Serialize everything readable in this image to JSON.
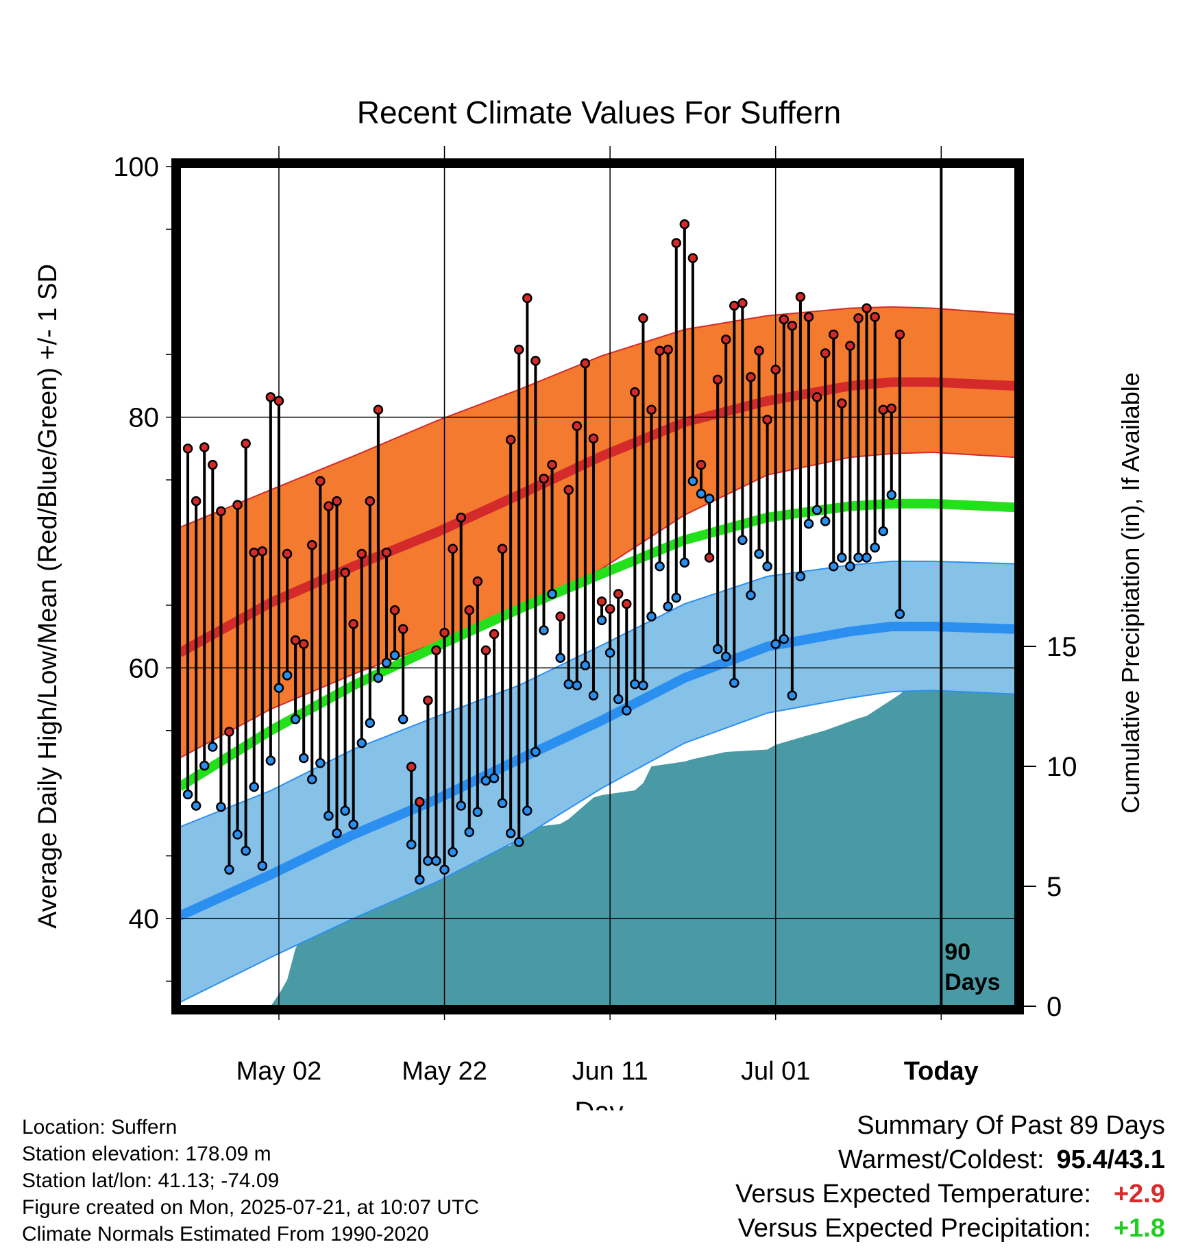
{
  "chart_data": {
    "type": "line",
    "title": "Recent Climate Values For Suffern",
    "xlabel": "Day",
    "ylabel": "Average Daily High/Low/Mean (Red/Blue/Green) +/- 1 SD",
    "y2label": "Cumulative Precipitation (in), If Available",
    "ylim": [
      33,
      100
    ],
    "yticks": [
      40,
      60,
      80,
      100
    ],
    "y2lim": [
      0,
      35
    ],
    "y2ticks": [
      0,
      5,
      10,
      15
    ],
    "xlim": [
      -1,
      100
    ],
    "x_tick_labels": [
      {
        "day": 11,
        "label": "May 02"
      },
      {
        "day": 31,
        "label": "May 22"
      },
      {
        "day": 51,
        "label": "Jun 11"
      },
      {
        "day": 71,
        "label": "Jul 01"
      },
      {
        "day": 91,
        "label": "Today"
      }
    ],
    "today_marker": {
      "day": 91,
      "label_line1": "90",
      "label_line2": "Days"
    },
    "grid": true,
    "colors": {
      "high_band": "#f47a30",
      "high_line": "#d42a2a",
      "mean_line": "#22e01a",
      "low_band": "#86c1e8",
      "low_line": "#2b8ff0",
      "precip": "#4a9aa5",
      "high_dot": "#d42a2a",
      "low_dot": "#2b8ff0"
    },
    "normals": {
      "x": [
        -1,
        10,
        20,
        30,
        40,
        50,
        60,
        70,
        80,
        85,
        90,
        100
      ],
      "high_mean": [
        61.2,
        65.2,
        68.1,
        70.8,
        73.8,
        76.9,
        79.6,
        81.3,
        82.5,
        82.8,
        82.8,
        82.5
      ],
      "high_upper": [
        71.2,
        74.2,
        76.9,
        79.7,
        82.2,
        84.9,
        87.0,
        88.1,
        88.7,
        88.8,
        88.7,
        88.2
      ],
      "high_lower": [
        52.8,
        56.7,
        59.5,
        62.0,
        64.6,
        67.9,
        72.2,
        75.4,
        76.8,
        77.1,
        77.2,
        76.8
      ],
      "normal_mean": [
        50.5,
        55.0,
        58.6,
        61.7,
        64.7,
        67.5,
        70.2,
        72.0,
        72.9,
        73.1,
        73.1,
        72.8
      ],
      "low_mean": [
        40.2,
        43.5,
        46.7,
        49.5,
        52.7,
        55.8,
        59.2,
        61.7,
        62.9,
        63.3,
        63.3,
        63.1
      ],
      "low_upper": [
        47.3,
        50.2,
        53.5,
        56.1,
        58.6,
        61.8,
        65.1,
        67.3,
        68.2,
        68.5,
        68.5,
        68.3
      ],
      "low_lower": [
        33.3,
        36.9,
        40.0,
        42.9,
        46.3,
        50.4,
        54.0,
        56.4,
        57.6,
        58.1,
        58.2,
        57.9
      ]
    },
    "series": [
      {
        "name": "High",
        "values": [
          77.5,
          73.3,
          77.6,
          76.2,
          72.5,
          54.9,
          73.0,
          77.9,
          69.2,
          69.3,
          81.6,
          81.3,
          69.1,
          62.2,
          61.9,
          69.8,
          74.9,
          72.9,
          73.3,
          67.6,
          63.5,
          69.1,
          73.3,
          80.6,
          69.2,
          64.6,
          63.1,
          52.1,
          49.3,
          57.4,
          61.4,
          62.8,
          69.5,
          72.0,
          64.6,
          66.9,
          61.4,
          62.7,
          69.5,
          78.2,
          85.4,
          89.5,
          84.5,
          75.1,
          76.2,
          64.1,
          74.2,
          79.3,
          84.3,
          78.3,
          65.3,
          64.7,
          65.9,
          65.1,
          82.0,
          87.9,
          80.6,
          85.3,
          85.4,
          93.9,
          95.4,
          92.7,
          76.2,
          68.8,
          83.0,
          86.2,
          88.9,
          89.1,
          83.2,
          85.3,
          79.8,
          83.8,
          87.8,
          87.3,
          89.6,
          88.0,
          81.6,
          85.1,
          86.6,
          81.1,
          85.7,
          87.9,
          88.7,
          88.0,
          80.6,
          80.7,
          86.6
        ]
      },
      {
        "name": "Low",
        "values": [
          49.9,
          49.0,
          52.2,
          53.7,
          48.9,
          43.9,
          46.7,
          45.4,
          50.5,
          44.2,
          52.6,
          58.4,
          59.4,
          55.9,
          52.8,
          51.1,
          52.4,
          48.2,
          46.8,
          48.6,
          47.5,
          54.0,
          55.6,
          59.2,
          60.4,
          61.0,
          55.9,
          45.9,
          43.1,
          44.6,
          44.6,
          43.9,
          45.3,
          49.0,
          46.9,
          48.5,
          51.0,
          51.2,
          49.2,
          46.8,
          46.1,
          48.6,
          53.3,
          63.0,
          65.9,
          60.8,
          58.7,
          58.6,
          60.2,
          57.8,
          63.8,
          61.2,
          57.5,
          56.6,
          58.7,
          58.6,
          64.1,
          68.1,
          64.9,
          65.6,
          68.4,
          74.9,
          73.9,
          73.5,
          61.5,
          60.9,
          58.8,
          70.2,
          65.8,
          69.1,
          68.1,
          61.9,
          62.3,
          57.8,
          67.3,
          71.5,
          72.6,
          71.7,
          68.1,
          68.8,
          68.1,
          68.8,
          68.8,
          69.6,
          70.9,
          73.8,
          64.3,
          61.6,
          71.4
        ]
      },
      {
        "name": "Cumulative Precipitation",
        "x": [
          -1,
          10,
          11,
          12,
          13,
          14,
          15,
          16,
          17,
          18,
          20,
          21,
          22,
          23,
          24,
          29,
          30,
          31,
          35,
          36,
          37,
          39,
          40,
          45,
          46,
          47,
          49,
          50,
          54,
          55,
          56,
          60,
          61,
          65,
          70,
          71,
          72,
          76,
          77,
          81,
          82,
          86,
          87,
          100
        ],
        "values": [
          0,
          0,
          0.5,
          1.1,
          2.4,
          3.0,
          3.1,
          3.4,
          3.9,
          4.3,
          4.4,
          4.5,
          4.6,
          4.7,
          5.2,
          5.5,
          5.8,
          5.9,
          6.0,
          6.5,
          6.6,
          6.7,
          7.4,
          7.6,
          7.8,
          8.1,
          8.7,
          8.8,
          9.0,
          9.3,
          10.0,
          10.2,
          10.3,
          10.6,
          10.7,
          10.9,
          11.0,
          11.4,
          11.5,
          12.0,
          12.1,
          13.0,
          13.3,
          13.3
        ]
      }
    ]
  },
  "meta": {
    "location": "Location: Suffern",
    "elevation": "Station elevation: 178.09 m",
    "latlon": "Station lat/lon: 41.13; -74.09",
    "created": "Figure created on Mon, 2025-07-21, at 10:07 UTC",
    "normals": "Climate Normals Estimated From 1990-2020"
  },
  "summary": {
    "heading": "Summary Of Past 89 Days",
    "warm_cold_label": "Warmest/Coldest:",
    "warm_cold_value": "95.4/43.1",
    "temp_label": "Versus Expected Temperature:",
    "temp_value": "+2.9",
    "precip_label": "Versus Expected Precipitation:",
    "precip_value": "+1.8"
  }
}
